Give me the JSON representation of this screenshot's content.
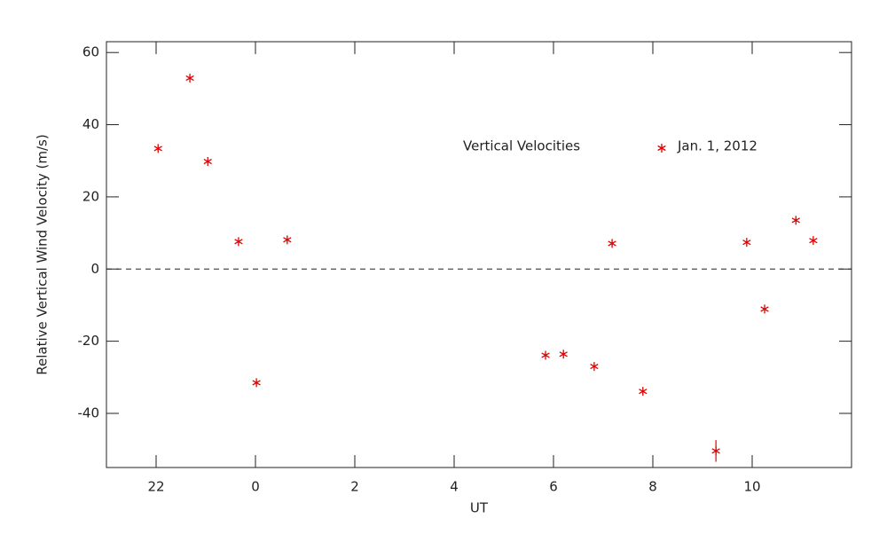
{
  "chart_data": {
    "type": "scatter",
    "xlabel": "UT",
    "ylabel": "Relative Vertical Wind Velocity (m/s)",
    "legend_title": "Vertical Velocities",
    "series": [
      {
        "name": "Jan. 1, 2012",
        "color": "#e00000",
        "x": [
          -1.96,
          -1.32,
          -0.96,
          -0.34,
          0.02,
          0.64,
          5.84,
          6.2,
          6.82,
          7.18,
          7.8,
          9.27,
          9.89,
          10.25,
          10.88,
          11.23
        ],
        "values": [
          33.4,
          52.9,
          29.8,
          7.6,
          -31.5,
          8.1,
          -23.9,
          -23.6,
          -27.0,
          7.1,
          -33.9,
          -50.4,
          7.4,
          -11.1,
          13.5,
          7.9
        ],
        "errors": [
          null,
          null,
          null,
          null,
          null,
          null,
          null,
          null,
          null,
          null,
          null,
          3,
          null,
          null,
          null,
          null
        ]
      }
    ],
    "xlim": [
      -3,
      12
    ],
    "xticks": [
      {
        "value": -2,
        "label": "22"
      },
      0,
      2,
      4,
      6,
      8,
      10
    ],
    "ylim": [
      -55,
      63
    ],
    "yticks": [
      -40,
      -20,
      0,
      20,
      40,
      60
    ],
    "zero_line": true
  }
}
